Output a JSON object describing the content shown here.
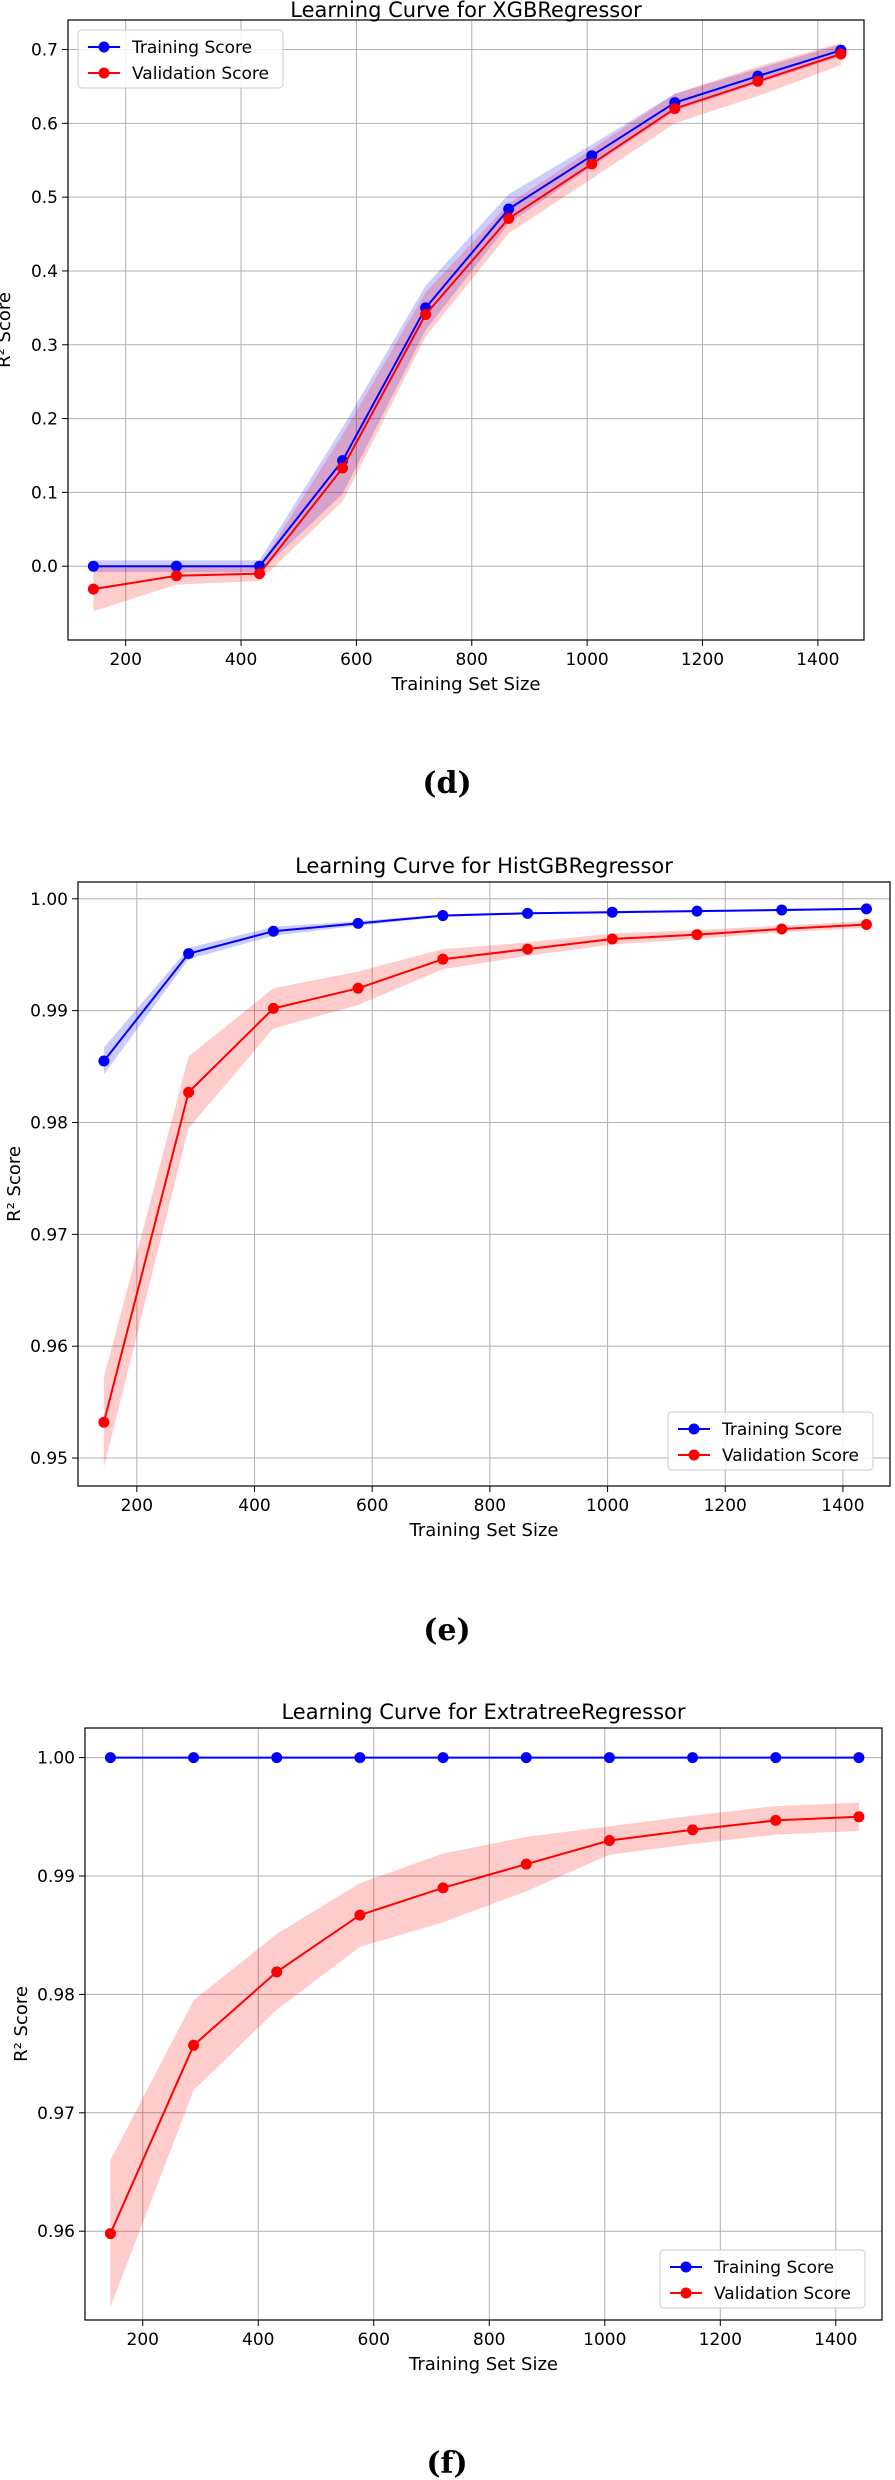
{
  "colors": {
    "training": "#0000ff",
    "validation": "#ff0000",
    "grid": "#b0b0b0"
  },
  "chart_data": [
    {
      "type": "line",
      "title": "Learning Curve for XGBRegressor",
      "xlabel": "Training Set Size",
      "ylabel": "R² Score",
      "caption": "(d)",
      "xlim": [
        100,
        1480
      ],
      "ylim": [
        -0.1,
        0.74
      ],
      "xticks": [
        200,
        400,
        600,
        800,
        1000,
        1200,
        1400
      ],
      "xtick_labels": [
        "200",
        "400",
        "600",
        "800",
        "1000",
        "1200",
        "1400"
      ],
      "yticks": [
        0.0,
        0.1,
        0.2,
        0.3,
        0.4,
        0.5,
        0.6,
        0.7
      ],
      "ytick_labels": [
        "0.0",
        "0.1",
        "0.2",
        "0.3",
        "0.4",
        "0.5",
        "0.6",
        "0.7"
      ],
      "grid": true,
      "legend": "top-left",
      "x": [
        144,
        288,
        432,
        576,
        720,
        864,
        1008,
        1152,
        1296,
        1440
      ],
      "series": [
        {
          "name": "Training Score",
          "values": [
            0.0,
            0.0,
            0.0,
            0.143,
            0.35,
            0.484,
            0.556,
            0.628,
            0.664,
            0.699
          ],
          "band": [
            0.008,
            0.008,
            0.008,
            0.045,
            0.03,
            0.02,
            0.015,
            0.012,
            0.01,
            0.008
          ]
        },
        {
          "name": "Validation Score",
          "values": [
            -0.031,
            -0.013,
            -0.01,
            0.133,
            0.341,
            0.471,
            0.545,
            0.62,
            0.657,
            0.694
          ],
          "band": [
            0.03,
            0.012,
            0.01,
            0.045,
            0.03,
            0.02,
            0.02,
            0.02,
            0.02,
            0.015
          ]
        }
      ]
    },
    {
      "type": "line",
      "title": "Learning Curve for HistGBRegressor",
      "xlabel": "Training Set Size",
      "ylabel": "R² Score",
      "caption": "(e)",
      "xlim": [
        100,
        1480
      ],
      "ylim": [
        0.9475,
        1.0015
      ],
      "xticks": [
        200,
        400,
        600,
        800,
        1000,
        1200,
        1400
      ],
      "xtick_labels": [
        "200",
        "400",
        "600",
        "800",
        "1000",
        "1200",
        "1400"
      ],
      "yticks": [
        0.95,
        0.96,
        0.97,
        0.98,
        0.99,
        1.0
      ],
      "ytick_labels": [
        "0.95",
        "0.96",
        "0.97",
        "0.98",
        "0.99",
        "1.00"
      ],
      "grid": true,
      "legend": "bottom-right",
      "x": [
        144,
        288,
        432,
        576,
        720,
        864,
        1008,
        1152,
        1296,
        1440
      ],
      "series": [
        {
          "name": "Training Score",
          "values": [
            0.9855,
            0.9951,
            0.9971,
            0.9978,
            0.9985,
            0.9987,
            0.9988,
            0.9989,
            0.999,
            0.9991
          ],
          "band": [
            0.0012,
            0.0005,
            0.0004,
            0.0002,
            0.0001,
            0.0001,
            0.0001,
            0.0001,
            0.0001,
            0.0001
          ]
        },
        {
          "name": "Validation Score",
          "values": [
            0.9532,
            0.9827,
            0.9902,
            0.992,
            0.9946,
            0.9955,
            0.9964,
            0.9968,
            0.9973,
            0.9977
          ],
          "band": [
            0.004,
            0.0032,
            0.0018,
            0.0015,
            0.0009,
            0.0006,
            0.0005,
            0.0004,
            0.0003,
            0.0003
          ]
        }
      ]
    },
    {
      "type": "line",
      "title": "Learning Curve for ExtratreeRegressor",
      "xlabel": "Training Set Size",
      "ylabel": "R² Score",
      "caption": "(f)",
      "xlim": [
        100,
        1480
      ],
      "ylim": [
        0.9525,
        1.0025
      ],
      "xticks": [
        200,
        400,
        600,
        800,
        1000,
        1200,
        1400
      ],
      "xtick_labels": [
        "200",
        "400",
        "600",
        "800",
        "1000",
        "1200",
        "1400"
      ],
      "yticks": [
        0.96,
        0.97,
        0.98,
        0.99,
        1.0
      ],
      "ytick_labels": [
        "0.96",
        "0.97",
        "0.98",
        "0.99",
        "1.00"
      ],
      "grid": true,
      "legend": "bottom-right",
      "x": [
        144,
        288,
        432,
        576,
        720,
        864,
        1008,
        1152,
        1296,
        1440
      ],
      "series": [
        {
          "name": "Training Score",
          "values": [
            1.0,
            1.0,
            1.0,
            1.0,
            1.0,
            1.0,
            1.0,
            1.0,
            1.0,
            1.0
          ],
          "band": [
            0,
            0,
            0,
            0,
            0,
            0,
            0,
            0,
            0,
            0
          ]
        },
        {
          "name": "Validation Score",
          "values": [
            0.9598,
            0.9757,
            0.9819,
            0.9867,
            0.989,
            0.991,
            0.993,
            0.9939,
            0.9947,
            0.995
          ],
          "band": [
            0.0062,
            0.0038,
            0.0032,
            0.0027,
            0.0029,
            0.0023,
            0.0012,
            0.0012,
            0.0012,
            0.0012
          ]
        }
      ]
    }
  ]
}
